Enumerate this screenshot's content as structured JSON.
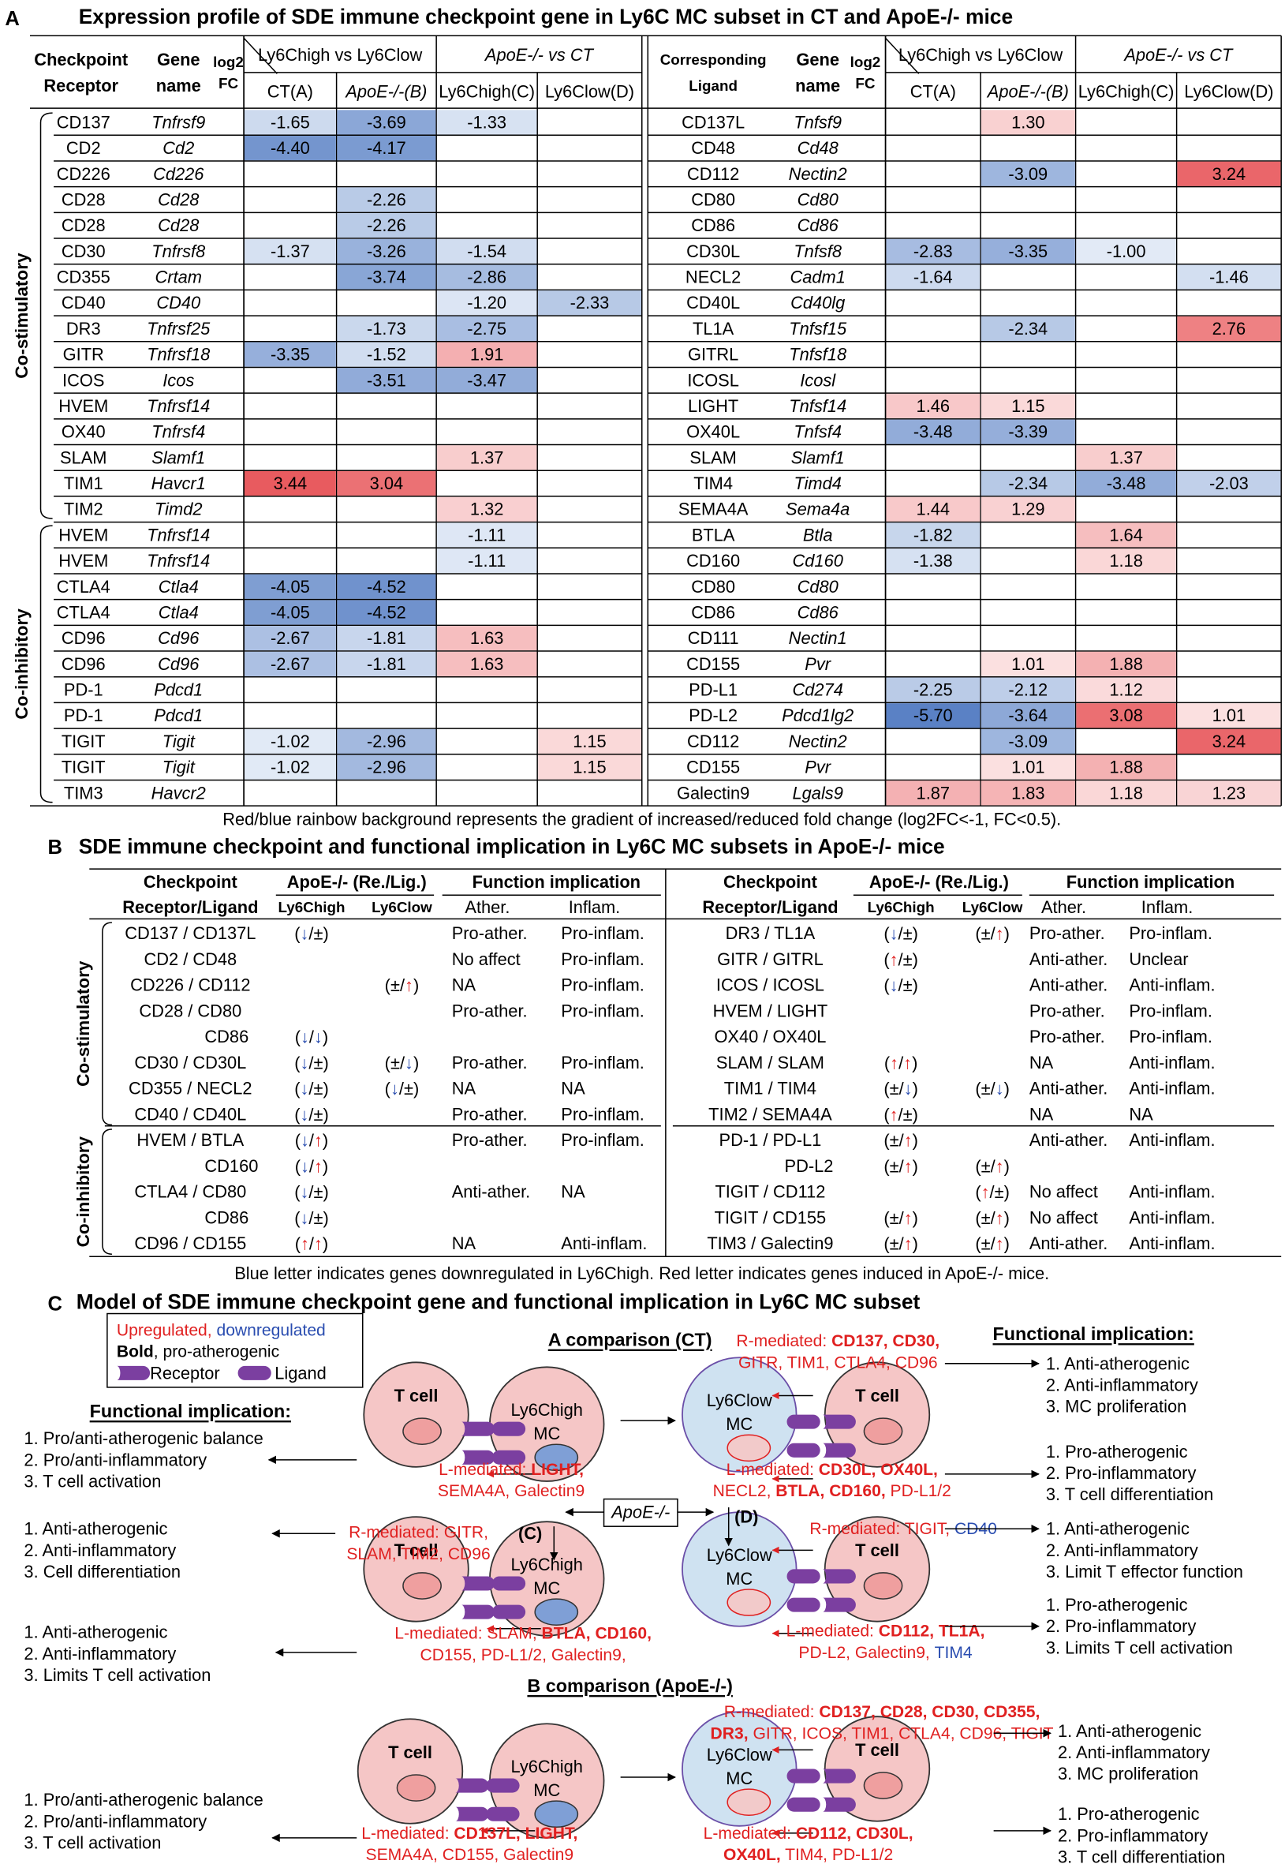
{
  "panel_a": {
    "letter": "A",
    "title": "Expression profile of SDE immune checkpoint gene in Ly6C MC subset in CT and ApoE-/- mice",
    "headers": {
      "receptor": [
        "Checkpoint",
        "Receptor"
      ],
      "ligand": [
        "Corresponding",
        "Ligand"
      ],
      "gene": [
        "Gene",
        "name"
      ],
      "log": [
        "log2",
        "FC"
      ],
      "group1": "Ly6Chigh vs Ly6Clow",
      "group2": "ApoE-/- vs CT",
      "sub": [
        "CT(A)",
        "ApoE-/-(B)",
        "Ly6Chigh(C)",
        "Ly6Clow(D)"
      ]
    },
    "group_labels": [
      "Co-stimulatory",
      "Co-inhibitory"
    ],
    "left_rows": [
      [
        "CD137",
        "Tnfrsf9",
        "-1.65",
        "-3.69",
        "-1.33",
        null
      ],
      [
        "CD2",
        "Cd2",
        "-4.40",
        "-4.17",
        null,
        null
      ],
      [
        "CD226",
        "Cd226",
        null,
        null,
        null,
        null
      ],
      [
        "CD28",
        "Cd28",
        null,
        "-2.26",
        null,
        null
      ],
      [
        "CD28",
        "Cd28",
        null,
        "-2.26",
        null,
        null
      ],
      [
        "CD30",
        "Tnfrsf8",
        "-1.37",
        "-3.26",
        "-1.54",
        null
      ],
      [
        "CD355",
        "Crtam",
        null,
        "-3.74",
        "-2.86",
        null
      ],
      [
        "CD40",
        "CD40",
        null,
        null,
        "-1.20",
        "-2.33"
      ],
      [
        "DR3",
        "Tnfrsf25",
        null,
        "-1.73",
        "-2.75",
        null
      ],
      [
        "GITR",
        "Tnfrsf18",
        "-3.35",
        "-1.52",
        "1.91",
        null
      ],
      [
        "ICOS",
        "Icos",
        null,
        "-3.51",
        "-3.47",
        null
      ],
      [
        "HVEM",
        "Tnfrsf14",
        null,
        null,
        null,
        null
      ],
      [
        "OX40",
        "Tnfrsf4",
        null,
        null,
        null,
        null
      ],
      [
        "SLAM",
        "Slamf1",
        null,
        null,
        "1.37",
        null
      ],
      [
        "TIM1",
        "Havcr1",
        "3.44",
        "3.04",
        null,
        null
      ],
      [
        "TIM2",
        "Timd2",
        null,
        null,
        "1.32",
        null
      ],
      [
        "HVEM",
        "Tnfrsf14",
        null,
        null,
        "-1.11",
        null
      ],
      [
        "HVEM",
        "Tnfrsf14",
        null,
        null,
        "-1.11",
        null
      ],
      [
        "CTLA4",
        "Ctla4",
        "-4.05",
        "-4.52",
        null,
        null
      ],
      [
        "CTLA4",
        "Ctla4",
        "-4.05",
        "-4.52",
        null,
        null
      ],
      [
        "CD96",
        "Cd96",
        "-2.67",
        "-1.81",
        "1.63",
        null
      ],
      [
        "CD96",
        "Cd96",
        "-2.67",
        "-1.81",
        "1.63",
        null
      ],
      [
        "PD-1",
        "Pdcd1",
        null,
        null,
        null,
        null
      ],
      [
        "PD-1",
        "Pdcd1",
        null,
        null,
        null,
        null
      ],
      [
        "TIGIT",
        "Tigit",
        "-1.02",
        "-2.96",
        null,
        "1.15"
      ],
      [
        "TIGIT",
        "Tigit",
        "-1.02",
        "-2.96",
        null,
        "1.15"
      ],
      [
        "TIM3",
        "Havcr2",
        null,
        null,
        null,
        null
      ]
    ],
    "right_rows": [
      [
        "CD137L",
        "Tnfsf9",
        null,
        "1.30",
        null,
        null
      ],
      [
        "CD48",
        "Cd48",
        null,
        null,
        null,
        null
      ],
      [
        "CD112",
        "Nectin2",
        null,
        "-3.09",
        null,
        "3.24"
      ],
      [
        "CD80",
        "Cd80",
        null,
        null,
        null,
        null
      ],
      [
        "CD86",
        "Cd86",
        null,
        null,
        null,
        null
      ],
      [
        "CD30L",
        "Tnfsf8",
        "-2.83",
        "-3.35",
        "-1.00",
        null
      ],
      [
        "NECL2",
        "Cadm1",
        "-1.64",
        null,
        null,
        "-1.46"
      ],
      [
        "CD40L",
        "Cd40lg",
        null,
        null,
        null,
        null
      ],
      [
        "TL1A",
        "Tnfsf15",
        null,
        "-2.34",
        null,
        "2.76"
      ],
      [
        "GITRL",
        "Tnfsf18",
        null,
        null,
        null,
        null
      ],
      [
        "ICOSL",
        "Icosl",
        null,
        null,
        null,
        null
      ],
      [
        "LIGHT",
        "Tnfsf14",
        "1.46",
        "1.15",
        null,
        null
      ],
      [
        "OX40L",
        "Tnfsf4",
        "-3.48",
        "-3.39",
        null,
        null
      ],
      [
        "SLAM",
        "Slamf1",
        null,
        null,
        "1.37",
        null
      ],
      [
        "TIM4",
        "Timd4",
        null,
        "-2.34",
        "-3.48",
        "-2.03"
      ],
      [
        "SEMA4A",
        "Sema4a",
        "1.44",
        "1.29",
        null,
        null
      ],
      [
        "BTLA",
        "Btla",
        "-1.82",
        null,
        "1.64",
        null
      ],
      [
        "CD160",
        "Cd160",
        "-1.38",
        null,
        "1.18",
        null
      ],
      [
        "CD80",
        "Cd80",
        null,
        null,
        null,
        null
      ],
      [
        "CD86",
        "Cd86",
        null,
        null,
        null,
        null
      ],
      [
        "CD111",
        "Nectin1",
        null,
        null,
        null,
        null
      ],
      [
        "CD155",
        "Pvr",
        null,
        "1.01",
        "1.88",
        null
      ],
      [
        "PD-L1",
        "Cd274",
        "-2.25",
        "-2.12",
        "1.12",
        null
      ],
      [
        "PD-L2",
        "Pdcd1lg2",
        "-5.70",
        "-3.64",
        "3.08",
        "1.01"
      ],
      [
        "CD112",
        "Nectin2",
        null,
        "-3.09",
        null,
        "3.24"
      ],
      [
        "CD155",
        "Pvr",
        null,
        "1.01",
        "1.88",
        null
      ],
      [
        "Galectin9",
        "Lgals9",
        "1.87",
        "1.83",
        "1.18",
        "1.23"
      ]
    ],
    "caption": "Red/blue rainbow background represents the gradient of increased/reduced fold change (log2FC<-1, FC<0.5)."
  },
  "panel_b": {
    "letter": "B",
    "title": "SDE immune checkpoint and functional implication in Ly6C MC subsets in ApoE-/- mice",
    "headers": {
      "pair": [
        "Checkpoint",
        "Receptor/Ligand"
      ],
      "apoe": "ApoE-/- (Re./Lig.)",
      "func": "Function implication",
      "high": "Ly6Chigh",
      "low": "Ly6Clow",
      "ather": "Ather.",
      "inflam": "Inflam."
    },
    "group_labels": [
      "Co-stimulatory",
      "Co-inhibitory"
    ],
    "left_rows": [
      [
        "CD137 / CD137L",
        "(↓/±)",
        null,
        "Pro-ather.",
        "Pro-inflam."
      ],
      [
        "CD2 / CD48",
        null,
        null,
        "No affect",
        "Pro-inflam."
      ],
      [
        "CD226 / CD112",
        null,
        "(±/↑)",
        "NA",
        "Pro-inflam."
      ],
      [
        "CD28 / CD80",
        null,
        null,
        "Pro-ather.",
        "Pro-inflam."
      ],
      [
        "CD86",
        "(↓/↓)",
        null,
        null,
        null
      ],
      [
        "CD30 / CD30L",
        "(↓/±)",
        "(±/↓)",
        "Pro-ather.",
        "Pro-inflam."
      ],
      [
        "CD355 / NECL2",
        "(↓/±)",
        "(↓/±)",
        "NA",
        "NA"
      ],
      [
        "CD40 / CD40L",
        "(↓/±)",
        null,
        "Pro-ather.",
        "Pro-inflam."
      ],
      [
        "HVEM / BTLA",
        "(↓/↑)",
        null,
        "Pro-ather.",
        "Pro-inflam."
      ],
      [
        "CD160",
        "(↓/↑)",
        null,
        null,
        null
      ],
      [
        "CTLA4 / CD80",
        "(↓/±)",
        null,
        "Anti-ather.",
        "NA"
      ],
      [
        "CD86",
        "(↓/±)",
        null,
        null,
        null
      ],
      [
        "CD96 / CD155",
        "(↑/↑)",
        null,
        "NA",
        "Anti-inflam."
      ]
    ],
    "right_rows": [
      [
        "DR3 / TL1A",
        "(↓/±)",
        "(±/↑)",
        "Pro-ather.",
        "Pro-inflam."
      ],
      [
        "GITR / GITRL",
        "(↑/±)",
        null,
        "Anti-ather.",
        "Unclear"
      ],
      [
        "ICOS / ICOSL",
        "(↓/±)",
        null,
        "Anti-ather.",
        "Anti-inflam."
      ],
      [
        "HVEM / LIGHT",
        null,
        null,
        "Pro-ather.",
        "Pro-inflam."
      ],
      [
        "OX40 / OX40L",
        null,
        null,
        "Pro-ather.",
        "Pro-inflam."
      ],
      [
        "SLAM / SLAM",
        "(↑/↑)",
        null,
        "NA",
        "Anti-inflam."
      ],
      [
        "TIM1 / TIM4",
        "(±/↓)",
        "(±/↓)",
        "Anti-ather.",
        "Anti-inflam."
      ],
      [
        "TIM2 / SEMA4A",
        "(↑/±)",
        null,
        "NA",
        "NA"
      ],
      [
        "PD-1 / PD-L1",
        "(±/↑)",
        null,
        "Anti-ather.",
        "Anti-inflam."
      ],
      [
        "PD-L2",
        "(±/↑)",
        "(±/↑)",
        null,
        null
      ],
      [
        "TIGIT / CD112",
        null,
        "(↑/±)",
        "No affect",
        "Anti-inflam."
      ],
      [
        "TIGIT / CD155",
        "(±/↑)",
        "(±/↑)",
        "No affect",
        "Anti-inflam."
      ],
      [
        "TIM3 / Galectin9",
        "(±/↑)",
        "(±/↑)",
        "Anti-ather.",
        "Anti-inflam."
      ]
    ],
    "footnote": "Blue letter indicates genes downregulated in Ly6Chigh. Red letter indicates genes induced in ApoE-/- mice."
  },
  "panel_c": {
    "letter": "C",
    "title": "Model of SDE immune checkpoint gene and functional implication in Ly6C MC subset",
    "legend": {
      "line1": [
        {
          "text": "Upregulated,",
          "color": "red"
        },
        {
          "text": " downregulated",
          "color": "blue"
        }
      ],
      "line2": [
        {
          "text": "Bold",
          "bold": true,
          "color": "black"
        },
        {
          "text": ", pro-atherogenic",
          "color": "black"
        }
      ],
      "receptor": "Receptor",
      "ligand": "Ligand"
    },
    "headings": {
      "a": "A comparison (CT)",
      "b": "B comparison (ApoE-/-)",
      "apoe": "ApoE-/-",
      "c": "(C)",
      "d": "(D)",
      "func": "Functional implication:"
    },
    "cells": {
      "t": "T cell",
      "high": [
        "Ly6Chigh",
        "MC"
      ],
      "low": [
        "Ly6Clow",
        "MC"
      ]
    },
    "mediated": [
      [
        [
          {
            "text": "L-mediated: "
          },
          {
            "text": "LIGHT,",
            "bold": true
          }
        ],
        [
          {
            "text": "SEMA4A, Galectin9"
          }
        ]
      ],
      [
        [
          {
            "text": "R-mediated: "
          },
          {
            "text": "CD137, CD30,",
            "bold": true
          }
        ],
        [
          {
            "text": "GITR, TIM1, CTLA4, CD96"
          }
        ]
      ],
      [
        [
          {
            "text": "L-mediated: "
          },
          {
            "text": "CD30L, OX40L,",
            "bold": true
          }
        ],
        [
          {
            "text": "NECL2, "
          },
          {
            "text": "BTLA, CD160,",
            "bold": true
          },
          {
            "text": " PD-L1/2"
          }
        ]
      ],
      [
        [
          {
            "text": "R-mediated: GITR,"
          }
        ],
        [
          {
            "text": "SLAM, TIM2, CD96"
          }
        ]
      ],
      [
        [
          {
            "text": "L-mediated: SLAM, "
          },
          {
            "text": "BTLA, CD160,",
            "bold": true
          }
        ],
        [
          {
            "text": "CD155, PD-L1/2, Galectin9,"
          }
        ]
      ],
      [
        [
          {
            "text": "R-mediated: TIGIT, "
          },
          {
            "text": "CD40",
            "color": "blue"
          }
        ]
      ],
      [
        [
          {
            "text": "L-mediated: "
          },
          {
            "text": "CD112, TL1A,",
            "bold": true
          }
        ],
        [
          {
            "text": "PD-L2, Galectin9, "
          },
          {
            "text": "TIM4",
            "color": "blue"
          }
        ]
      ],
      [
        [
          {
            "text": "L-mediated: "
          },
          {
            "text": "CD137L, LIGHT,",
            "bold": true
          }
        ],
        [
          {
            "text": "SEMA4A, CD155, Galectin9"
          }
        ]
      ],
      [
        [
          {
            "text": "R-mediated: "
          },
          {
            "text": "CD137, CD28, CD30, CD355,",
            "bold": true
          }
        ],
        [
          {
            "text": "DR3,",
            "bold": true
          },
          {
            "text": " GITR, ICOS, TIM1, CTLA4, CD96, TIGIT"
          }
        ]
      ],
      [
        [
          {
            "text": "L-mediated: "
          },
          {
            "text": "CD112, CD30L,",
            "bold": true
          }
        ],
        [
          {
            "text": "OX40L,",
            "bold": true
          },
          {
            "text": " TIM4, PD-L1/2"
          }
        ]
      ]
    ],
    "implications": [
      [
        "1. Anti-atherogenic",
        "2. Anti-inflammatory",
        "3. MC proliferation"
      ],
      [
        "1. Pro-atherogenic",
        "2. Pro-inflammatory",
        "3. T cell differentiation"
      ],
      [
        "1. Anti-atherogenic",
        "2. Anti-inflammatory",
        "3. Limit T effector function"
      ],
      [
        "1. Pro-atherogenic",
        "2. Pro-inflammatory",
        "3. Limits T cell activation"
      ],
      [
        "1. Anti-atherogenic",
        "2. Anti-inflammatory",
        "3. MC proliferation"
      ],
      [
        "1. Pro-atherogenic",
        "2. Pro-inflammatory",
        "3. T cell differentiation"
      ],
      [
        "1. Pro/anti-atherogenic balance",
        "2. Pro/anti-inflammatory",
        "3. T cell activation"
      ],
      [
        "1. Anti-atherogenic",
        "2. Anti-inflammatory",
        "3. Cell differentiation"
      ],
      [
        "1. Anti-atherogenic",
        "2. Anti-inflammatory",
        "3. Limits T cell activation"
      ],
      [
        "1. Pro/anti-atherogenic balance",
        "2. Pro/anti-inflammatory",
        "3. T cell activation"
      ]
    ]
  }
}
